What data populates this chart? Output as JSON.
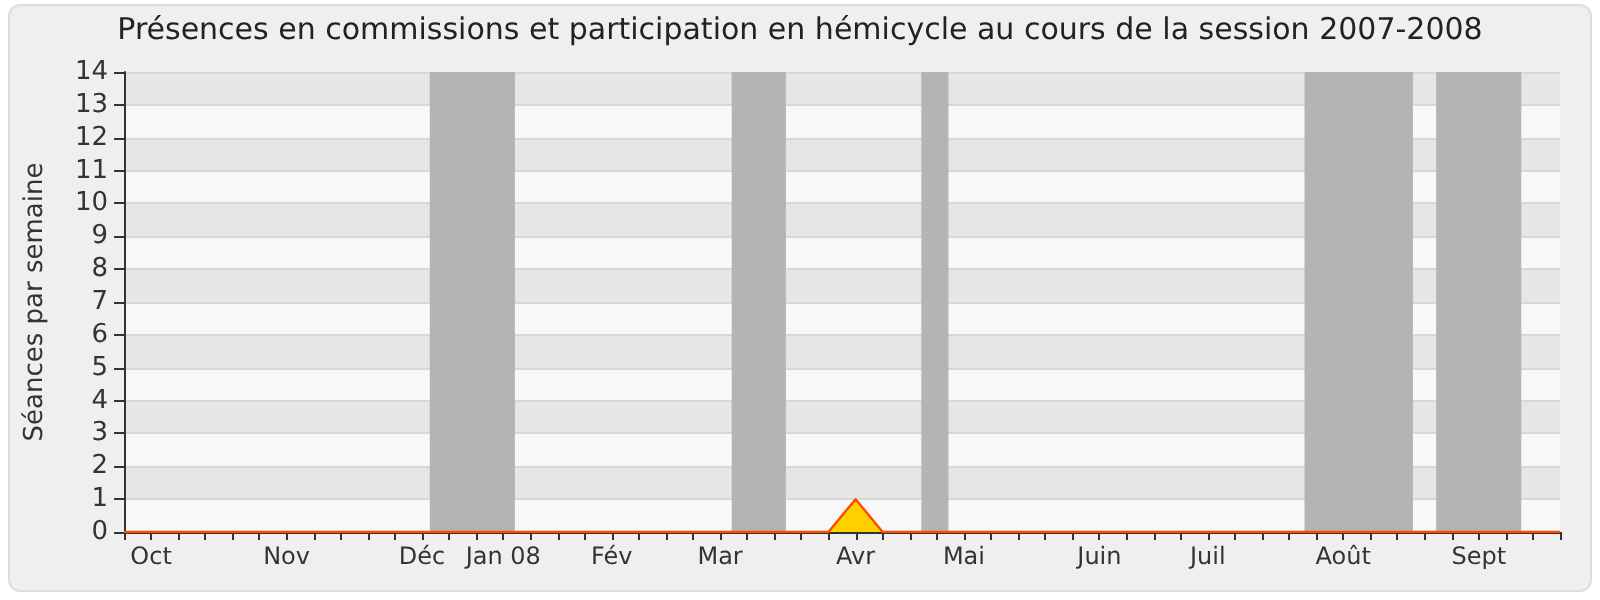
{
  "chart_data": {
    "type": "area",
    "title": "Présences en commissions et participation en hémicycle au cours de la session 2007-2008",
    "ylabel": "Séances par semaine",
    "x": [
      "2007-10-01",
      "2007-10-08",
      "2007-10-15",
      "2007-10-22",
      "2007-10-29",
      "2007-11-05",
      "2007-11-12",
      "2007-11-19",
      "2007-11-26",
      "2007-12-03",
      "2007-12-10",
      "2007-12-17",
      "2007-12-24",
      "2007-12-31",
      "2008-01-07",
      "2008-01-14",
      "2008-01-21",
      "2008-01-28",
      "2008-02-04",
      "2008-02-11",
      "2008-02-18",
      "2008-02-25",
      "2008-03-03",
      "2008-03-10",
      "2008-03-17",
      "2008-03-24",
      "2008-03-31",
      "2008-04-07",
      "2008-04-14",
      "2008-04-21",
      "2008-04-28",
      "2008-05-05",
      "2008-05-12",
      "2008-05-19",
      "2008-05-26",
      "2008-06-02",
      "2008-06-09",
      "2008-06-16",
      "2008-06-23",
      "2008-06-30",
      "2008-07-07",
      "2008-07-14",
      "2008-07-21",
      "2008-07-28",
      "2008-08-04",
      "2008-08-11",
      "2008-08-18",
      "2008-08-25",
      "2008-09-01",
      "2008-09-08",
      "2008-09-15",
      "2008-09-22",
      "2008-09-29",
      "2008-10-06"
    ],
    "series": [
      {
        "color": "#ffd000",
        "values": [
          0,
          0,
          0,
          0,
          0,
          0,
          0,
          0,
          0,
          0,
          0,
          0,
          0,
          0,
          0,
          0,
          0,
          0,
          0,
          0,
          0,
          0,
          0,
          0,
          0,
          0,
          0,
          1,
          0,
          0,
          0,
          0,
          0,
          0,
          0,
          0,
          0,
          0,
          0,
          0,
          0,
          0,
          0,
          0,
          0,
          0,
          0,
          0,
          0,
          0,
          0,
          0,
          0,
          0
        ]
      }
    ],
    "xlim": [
      "2007-10-01",
      "2008-10-06"
    ],
    "xticks": [
      {
        "value": "2007-10-01",
        "label": null
      },
      {
        "value": "2007-10-08",
        "label": "Oct"
      },
      {
        "value": "2007-10-15",
        "label": null
      },
      {
        "value": "2007-10-22",
        "label": null
      },
      {
        "value": "2007-10-29",
        "label": null
      },
      {
        "value": "2007-11-05",
        "label": null
      },
      {
        "value": "2007-11-12",
        "label": "Nov"
      },
      {
        "value": "2007-11-19",
        "label": null
      },
      {
        "value": "2007-11-26",
        "label": null
      },
      {
        "value": "2007-12-03",
        "label": null
      },
      {
        "value": "2007-12-10",
        "label": null
      },
      {
        "value": "2007-12-17",
        "label": "Déc"
      },
      {
        "value": "2007-12-24",
        "label": null
      },
      {
        "value": "2007-12-31",
        "label": null
      },
      {
        "value": "2008-01-07",
        "label": "Jan 08"
      },
      {
        "value": "2008-01-14",
        "label": null
      },
      {
        "value": "2008-01-21",
        "label": null
      },
      {
        "value": "2008-01-28",
        "label": null
      },
      {
        "value": "2008-02-04",
        "label": "Fév"
      },
      {
        "value": "2008-02-11",
        "label": null
      },
      {
        "value": "2008-02-18",
        "label": null
      },
      {
        "value": "2008-02-25",
        "label": null
      },
      {
        "value": "2008-03-03",
        "label": "Mar"
      },
      {
        "value": "2008-03-10",
        "label": null
      },
      {
        "value": "2008-03-17",
        "label": null
      },
      {
        "value": "2008-03-24",
        "label": null
      },
      {
        "value": "2008-03-31",
        "label": null
      },
      {
        "value": "2008-04-07",
        "label": "Avr"
      },
      {
        "value": "2008-04-14",
        "label": null
      },
      {
        "value": "2008-04-21",
        "label": null
      },
      {
        "value": "2008-04-28",
        "label": null
      },
      {
        "value": "2008-05-05",
        "label": "Mai"
      },
      {
        "value": "2008-05-12",
        "label": null
      },
      {
        "value": "2008-05-19",
        "label": null
      },
      {
        "value": "2008-05-26",
        "label": null
      },
      {
        "value": "2008-06-02",
        "label": null
      },
      {
        "value": "2008-06-09",
        "label": "Juin"
      },
      {
        "value": "2008-06-16",
        "label": null
      },
      {
        "value": "2008-06-23",
        "label": null
      },
      {
        "value": "2008-06-30",
        "label": null
      },
      {
        "value": "2008-07-07",
        "label": "Juil"
      },
      {
        "value": "2008-07-14",
        "label": null
      },
      {
        "value": "2008-07-21",
        "label": null
      },
      {
        "value": "2008-07-28",
        "label": null
      },
      {
        "value": "2008-08-04",
        "label": null
      },
      {
        "value": "2008-08-11",
        "label": "Août"
      },
      {
        "value": "2008-08-18",
        "label": null
      },
      {
        "value": "2008-08-25",
        "label": null
      },
      {
        "value": "2008-09-01",
        "label": null
      },
      {
        "value": "2008-09-08",
        "label": null
      },
      {
        "value": "2008-09-15",
        "label": "Sept"
      },
      {
        "value": "2008-09-22",
        "label": null
      },
      {
        "value": "2008-09-29",
        "label": null
      },
      {
        "value": "2008-10-06",
        "label": null
      }
    ],
    "ylim": [
      0,
      14
    ],
    "yticks": [
      0,
      1,
      2,
      3,
      4,
      5,
      6,
      7,
      8,
      9,
      10,
      11,
      12,
      13,
      14
    ],
    "bands": [
      {
        "axis": "x",
        "from": "2007-12-19",
        "to": "2008-01-10",
        "color": "#b4b4b4"
      },
      {
        "axis": "x",
        "from": "2008-03-06",
        "to": "2008-03-20",
        "color": "#b4b4b4"
      },
      {
        "axis": "x",
        "from": "2008-04-24",
        "to": "2008-05-01",
        "color": "#b4b4b4"
      },
      {
        "axis": "x",
        "from": "2008-08-01",
        "to": "2008-08-29",
        "color": "#b4b4b4"
      },
      {
        "axis": "x",
        "from": "2008-09-04",
        "to": "2008-09-26",
        "color": "#b4b4b4"
      }
    ],
    "grid": "y",
    "marker": "none"
  }
}
